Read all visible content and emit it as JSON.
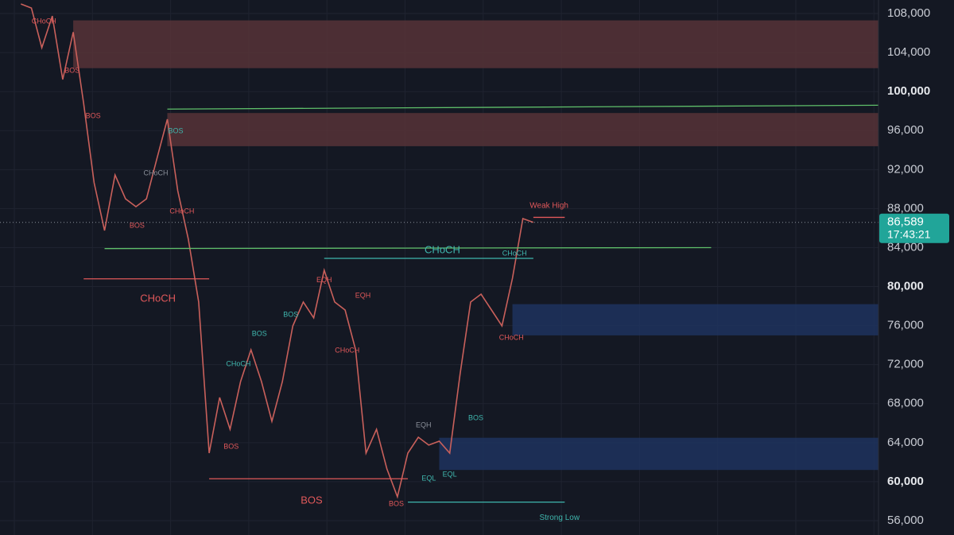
{
  "chart_data": {
    "type": "line",
    "color": "#c9605b",
    "values": [
      108980,
      108570,
      104500,
      107750,
      101240,
      106100,
      98790,
      90640,
      85750,
      91450,
      89000,
      88200,
      89000,
      93100,
      97160,
      89830,
      84900,
      78420,
      62930,
      68630,
      65370,
      70260,
      73520,
      70260,
      66190,
      70260,
      75970,
      78420,
      76790,
      81680,
      78420,
      77600,
      73520,
      62930,
      65370,
      61300,
      58450,
      62930,
      64560,
      63750,
      64150,
      62930,
      71080,
      78420,
      79230,
      77600,
      75970,
      80860,
      86970,
      86589
    ],
    "xlim": [
      -2,
      82
    ],
    "ylim": [
      54530,
      109390
    ],
    "yticks": [
      {
        "value": 56000,
        "label": "56,000"
      },
      {
        "value": 60000,
        "label": "60,000"
      },
      {
        "value": 64000,
        "label": "64,000"
      },
      {
        "value": 68000,
        "label": "68,000"
      },
      {
        "value": 72000,
        "label": "72,000"
      },
      {
        "value": 76000,
        "label": "76,000"
      },
      {
        "value": 80000,
        "label": "80,000"
      },
      {
        "value": 84000,
        "label": "84,000"
      },
      {
        "value": 88000,
        "label": "88,000"
      },
      {
        "value": 92000,
        "label": "92,000"
      },
      {
        "value": 96000,
        "label": "96,000"
      },
      {
        "value": 100000,
        "label": "100,000"
      },
      {
        "value": 104000,
        "label": "104,000"
      },
      {
        "value": 108000,
        "label": "108,000"
      }
    ],
    "grid": true,
    "current_price": {
      "value": 86589,
      "label": "86,589"
    },
    "countdown": "17:43:21",
    "zones": [
      {
        "low": 102400,
        "high": 107300,
        "start": 5,
        "end": 82,
        "color": "#5a3438"
      },
      {
        "low": 94400,
        "high": 97800,
        "start": 14,
        "end": 82,
        "color": "#5a3438"
      },
      {
        "low": 75000,
        "high": 78200,
        "start": 47,
        "end": 82,
        "color": "#1e3561"
      },
      {
        "low": 61200,
        "high": 64500,
        "start": 40,
        "end": 82,
        "color": "#1e3561"
      }
    ],
    "levels": [
      {
        "values": [
          98200,
          98600
        ],
        "start": 14,
        "end": 82,
        "color": "#5fbf6a"
      },
      {
        "values": [
          83900,
          84000
        ],
        "start": 8,
        "end": 66,
        "color": "#5fbf6a"
      },
      {
        "values": [
          80800,
          80800
        ],
        "start": 6,
        "end": 18,
        "color": "#e0585a"
      },
      {
        "values": [
          60300,
          60300
        ],
        "start": 18,
        "end": 37,
        "color": "#e0585a"
      },
      {
        "values": [
          82900,
          82900
        ],
        "start": 29,
        "end": 49,
        "color": "#3fb6ad"
      },
      {
        "values": [
          87100,
          87100
        ],
        "start": 49,
        "end": 52,
        "color": "#e0585a"
      },
      {
        "values": [
          57900,
          57900
        ],
        "start": 37,
        "end": 52,
        "color": "#3fb6ad"
      }
    ],
    "annotations": [
      {
        "text": "Weak High",
        "price": 88300,
        "index": 50.5,
        "color": "#e0585a",
        "size": 10
      },
      {
        "text": "Strong Low",
        "price": 56300,
        "index": 51.5,
        "color": "#3fb6ad",
        "size": 10
      },
      {
        "text": "CHoCH",
        "price": 83700,
        "index": 40.3,
        "color": "#3fb6ad",
        "size": 13
      },
      {
        "text": "CHoCH",
        "price": 78740,
        "index": 13.1,
        "color": "#e0585a",
        "size": 13
      },
      {
        "text": "BOS",
        "price": 58040,
        "index": 27.8,
        "color": "#e0585a",
        "size": 13
      },
      {
        "text": "CHoCH",
        "price": 107190,
        "index": 2.2,
        "color": "#e0585a",
        "size": 9
      },
      {
        "text": "BOS",
        "price": 102130,
        "index": 4.9,
        "color": "#e0585a",
        "size": 9
      },
      {
        "text": "BOS",
        "price": 97490,
        "index": 6.9,
        "color": "#e0585a",
        "size": 9
      },
      {
        "text": "BOS",
        "price": 95940,
        "index": 14.8,
        "color": "#3fb6ad",
        "size": 9
      },
      {
        "text": "CHoCH",
        "price": 91620,
        "index": 12.9,
        "color": "#8a8f99",
        "size": 9
      },
      {
        "text": "CHoCH",
        "price": 87700,
        "index": 15.4,
        "color": "#e0585a",
        "size": 9
      },
      {
        "text": "BOS",
        "price": 86240,
        "index": 11.1,
        "color": "#e0585a",
        "size": 9
      },
      {
        "text": "BOS",
        "price": 75150,
        "index": 22.8,
        "color": "#3fb6ad",
        "size": 9
      },
      {
        "text": "BOS",
        "price": 77110,
        "index": 25.8,
        "color": "#3fb6ad",
        "size": 9
      },
      {
        "text": "CHoCH",
        "price": 72060,
        "index": 20.8,
        "color": "#3fb6ad",
        "size": 9
      },
      {
        "text": "BOS",
        "price": 63580,
        "index": 20.1,
        "color": "#e0585a",
        "size": 9
      },
      {
        "text": "EQH",
        "price": 80640,
        "index": 29,
        "color": "#e0585a",
        "size": 9
      },
      {
        "text": "EQH",
        "price": 79070,
        "index": 32.7,
        "color": "#e0585a",
        "size": 9
      },
      {
        "text": "CHoCH",
        "price": 73440,
        "index": 31.2,
        "color": "#e0585a",
        "size": 9
      },
      {
        "text": "BOS",
        "price": 57710,
        "index": 35.9,
        "color": "#e0585a",
        "size": 9
      },
      {
        "text": "EQL",
        "price": 60320,
        "index": 39,
        "color": "#3fb6ad",
        "size": 9
      },
      {
        "text": "EQL",
        "price": 60730,
        "index": 41,
        "color": "#3fb6ad",
        "size": 9
      },
      {
        "text": "EQH",
        "price": 65780,
        "index": 38.5,
        "color": "#8a8f99",
        "size": 9
      },
      {
        "text": "BOS",
        "price": 66520,
        "index": 43.5,
        "color": "#3fb6ad",
        "size": 9
      },
      {
        "text": "CHoCH",
        "price": 83390,
        "index": 47.2,
        "color": "#3fb6ad",
        "size": 9
      },
      {
        "text": "CHoCH",
        "price": 74750,
        "index": 46.9,
        "color": "#e0585a",
        "size": 9
      }
    ]
  }
}
